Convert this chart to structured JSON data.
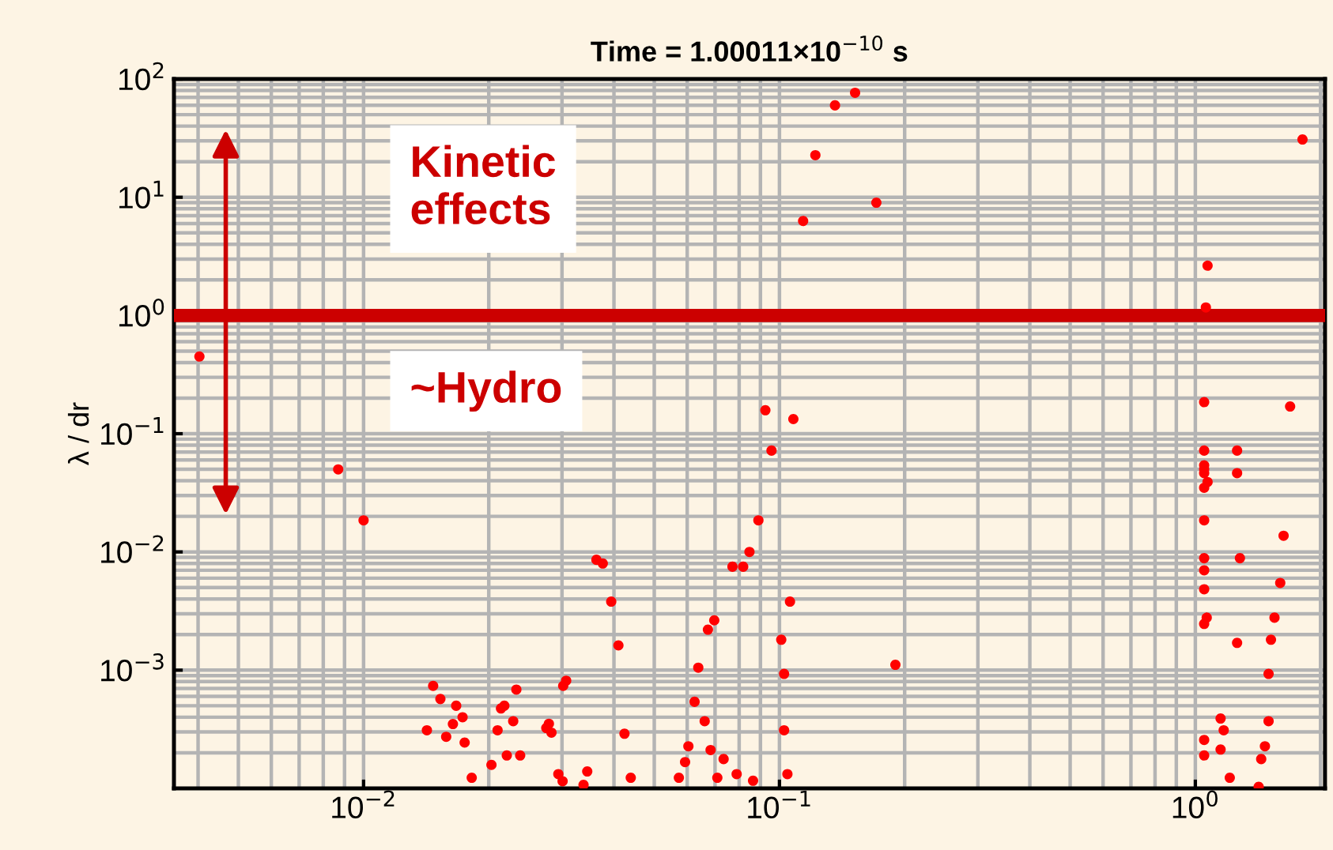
{
  "chart_data": {
    "type": "scatter",
    "title": "Time = 1.00011×10$^{−10}$ s",
    "ylabel": "λ / dr",
    "log": "xy",
    "grid": true,
    "marker": "circle",
    "xlim": [
      0.0035,
      2.05
    ],
    "ylim": [
      0.0001,
      100
    ],
    "xticks": [
      {
        "value": 0.01,
        "label": "10$^{−2}$"
      },
      {
        "value": 0.1,
        "label": "10$^{−1}$"
      },
      {
        "value": 1,
        "label": "10$^{0}$"
      }
    ],
    "yticks": [
      {
        "value": 0.001,
        "label": "10$^{−3}$"
      },
      {
        "value": 0.01,
        "label": "10$^{−2}$"
      },
      {
        "value": 0.1,
        "label": "10$^{−1}$"
      },
      {
        "value": 1,
        "label": "10$^{0}$"
      },
      {
        "value": 10,
        "label": "10$^{1}$"
      },
      {
        "value": 100,
        "label": "10$^{2}$"
      }
    ],
    "ref_lines": [
      {
        "axis": "y",
        "value": 1,
        "color": "#cc0000"
      }
    ],
    "annotations": [
      "Kinetic effects",
      "~Hydro"
    ],
    "series": [
      {
        "color": "#ff0000",
        "x": [
          0.00403,
          0.152,
          0.136,
          0.122,
          0.171,
          0.114,
          1.81,
          1.07,
          1.06,
          1.05,
          1.69,
          0.0925,
          0.108,
          0.00869,
          0.01,
          0.0363,
          0.0376,
          0.0394,
          0.041,
          0.0424,
          0.0439,
          0.0147,
          0.0153,
          0.0167,
          0.0173,
          0.0164,
          0.0142,
          0.0158,
          0.0175,
          0.0182,
          0.0203,
          0.021,
          0.0214,
          0.0218,
          0.0233,
          0.0229,
          0.0221,
          0.0238,
          0.0275,
          0.0279,
          0.0283,
          0.0302,
          0.0307,
          0.0294,
          0.0301,
          0.0338,
          0.0345,
          0.0957,
          0.089,
          0.0847,
          0.0771,
          0.0818,
          0.106,
          0.101,
          0.1026,
          0.1026,
          0.1045,
          0.0697,
          0.0673,
          0.0638,
          0.0625,
          0.0661,
          0.0604,
          0.0593,
          0.0573,
          0.0683,
          0.0734,
          0.0709,
          0.0789,
          0.0864,
          0.19,
          1.05,
          1.26,
          1.05,
          1.05,
          1.05,
          1.07,
          1.05,
          1.26,
          1.05,
          1.05,
          1.28,
          1.05,
          1.05,
          1.065,
          1.05,
          1.26,
          1.63,
          1.6,
          1.55,
          1.52,
          1.5,
          1.5,
          1.47,
          1.44,
          1.42,
          1.15,
          1.17,
          1.05,
          1.15,
          1.05,
          1.21
        ],
        "values": [
          0.45,
          76.6,
          59.9,
          22.7,
          9.0,
          6.3,
          30.8,
          2.64,
          1.17,
          0.185,
          0.17,
          0.158,
          0.133,
          0.0499,
          0.0185,
          0.00858,
          0.00798,
          0.0038,
          0.00162,
          0.00029,
          0.000123,
          0.000736,
          0.00057,
          0.0005,
          0.0004,
          0.00035,
          0.00031,
          0.000273,
          0.000244,
          0.000123,
          0.000158,
          0.00031,
          0.000474,
          0.0005,
          0.000685,
          0.00037,
          0.00019,
          0.00019,
          0.000324,
          0.000352,
          0.000296,
          0.000736,
          0.000814,
          0.000132,
          0.000115,
          0.000107,
          0.000139,
          0.072,
          0.0185,
          0.01,
          0.0075,
          0.0075,
          0.0038,
          0.00181,
          0.00093,
          0.00031,
          0.000132,
          0.00264,
          0.0022,
          0.00105,
          0.00054,
          0.00037,
          0.000227,
          0.000167,
          0.000123,
          0.000211,
          0.000177,
          0.000123,
          0.000132,
          0.000116,
          0.00111,
          0.072,
          0.072,
          0.054,
          0.05,
          0.0464,
          0.039,
          0.0349,
          0.0464,
          0.0185,
          0.00885,
          0.00885,
          0.00699,
          0.00483,
          0.00278,
          0.00246,
          0.0017,
          0.0137,
          0.00547,
          0.00278,
          0.00181,
          0.00093,
          0.00037,
          0.000227,
          0.000177,
          0.000103,
          0.00039,
          0.00031,
          0.000257,
          0.000213,
          0.00019,
          0.000123
        ]
      }
    ]
  }
}
